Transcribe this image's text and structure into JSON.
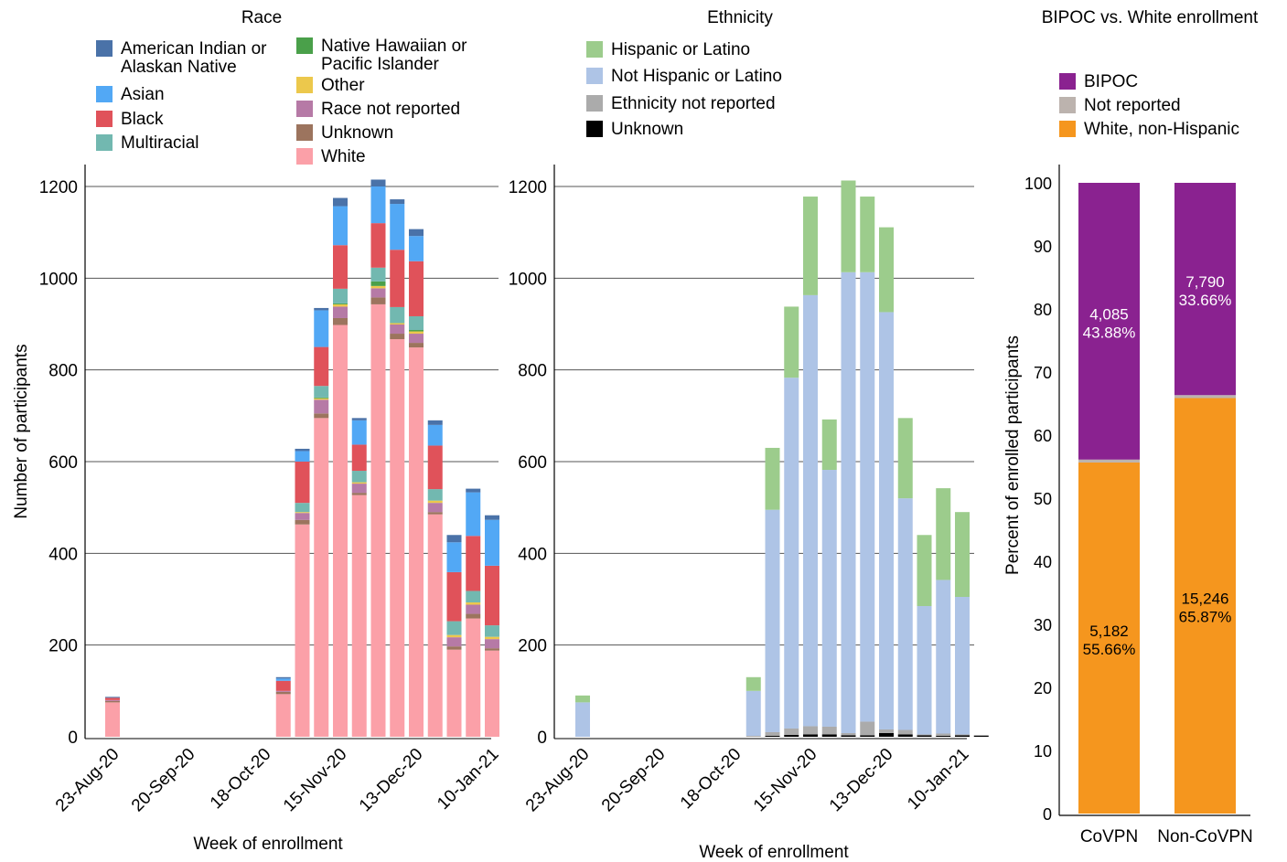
{
  "colors": {
    "American Indian or Alaskan Native": "#4a72a8",
    "Native Hawaiian or Pacific Islander": "#4aa04a",
    "Asian": "#52a8f5",
    "Other": "#ecc84c",
    "Black": "#e0525a",
    "Race not reported": "#b67aa6",
    "Multiracial": "#72b8b0",
    "Unknown": "#9c745e",
    "White": "#fba0a8",
    "Hispanic or Latino": "#9ccc8c",
    "Not Hispanic or Latino": "#aec4e6",
    "Ethnicity not reported": "#ababab",
    "Unknown (ethnicity)": "#000000",
    "BIPOC": "#8a2290",
    "Not reported": "#bcb3ae",
    "White, non-Hispanic": "#f5961e",
    "gridline": "#555555"
  },
  "chart_data": [
    {
      "id": "race",
      "type": "bar",
      "stacked": true,
      "title": "Race",
      "xlabel": "Week of enrollment",
      "ylabel": "Number of participants",
      "ylim": [
        0,
        1250
      ],
      "yticks": [
        0,
        200,
        400,
        600,
        800,
        1000,
        1200
      ],
      "grid": true,
      "legend": [
        [
          "American Indian or",
          "Alaskan Native"
        ],
        [
          "Asian"
        ],
        [
          "Black"
        ],
        [
          "Multiracial"
        ],
        [
          "Native Hawaiian or",
          "Pacific Islander"
        ],
        [
          "Other"
        ],
        [
          "Race not reported"
        ],
        [
          "Unknown"
        ],
        [
          "White"
        ]
      ],
      "xtick_labels": [
        "23-Aug-20",
        "20-Sep-20",
        "18-Oct-20",
        "15-Nov-20",
        "13-Dec-20",
        "10-Jan-21"
      ],
      "xtick_index": [
        0,
        4,
        8,
        12,
        16,
        20
      ],
      "categories": [
        "23-Aug-20",
        "30-Aug-20",
        "6-Sep-20",
        "13-Sep-20",
        "20-Sep-20",
        "27-Sep-20",
        "4-Oct-20",
        "11-Oct-20",
        "18-Oct-20",
        "25-Oct-20",
        "1-Nov-20",
        "8-Nov-20",
        "15-Nov-20",
        "22-Nov-20",
        "29-Nov-20",
        "6-Dec-20",
        "13-Dec-20",
        "20-Dec-20",
        "27-Dec-20",
        "3-Jan-21",
        "10-Jan-21",
        "17-Jan-21"
      ],
      "series": [
        {
          "name": "White",
          "values": [
            75,
            0,
            0,
            0,
            0,
            0,
            0,
            0,
            0,
            93,
            463,
            695,
            898,
            527,
            943,
            867,
            849,
            485,
            190,
            258,
            188,
            0
          ]
        },
        {
          "name": "Unknown",
          "values": [
            3,
            0,
            0,
            0,
            0,
            0,
            0,
            0,
            0,
            5,
            10,
            10,
            15,
            5,
            15,
            12,
            10,
            5,
            7,
            10,
            5,
            0
          ]
        },
        {
          "name": "Race not reported",
          "values": [
            2,
            0,
            0,
            0,
            0,
            0,
            0,
            0,
            0,
            2,
            15,
            30,
            25,
            20,
            20,
            20,
            20,
            20,
            20,
            20,
            20,
            0
          ]
        },
        {
          "name": "Other",
          "values": [
            0,
            0,
            0,
            0,
            0,
            0,
            0,
            0,
            0,
            0,
            2,
            3,
            5,
            3,
            5,
            3,
            5,
            5,
            5,
            5,
            5,
            0
          ]
        },
        {
          "name": "Native Hawaiian or Pacific Islander",
          "values": [
            0,
            0,
            0,
            0,
            0,
            0,
            0,
            0,
            0,
            0,
            0,
            2,
            2,
            0,
            10,
            0,
            3,
            0,
            0,
            0,
            0,
            0
          ]
        },
        {
          "name": "Multiracial",
          "values": [
            0,
            0,
            0,
            0,
            0,
            0,
            0,
            0,
            0,
            0,
            20,
            25,
            32,
            25,
            30,
            35,
            30,
            25,
            30,
            25,
            25,
            0
          ]
        },
        {
          "name": "Black",
          "values": [
            5,
            0,
            0,
            0,
            0,
            0,
            0,
            0,
            0,
            22,
            90,
            85,
            95,
            57,
            97,
            125,
            120,
            95,
            107,
            120,
            130,
            0
          ]
        },
        {
          "name": "Asian",
          "values": [
            0,
            0,
            0,
            0,
            0,
            0,
            0,
            0,
            0,
            5,
            23,
            80,
            85,
            53,
            80,
            100,
            55,
            45,
            65,
            95,
            100,
            0
          ]
        },
        {
          "name": "American Indian or Alaskan Native",
          "values": [
            2,
            0,
            0,
            0,
            0,
            0,
            0,
            0,
            0,
            3,
            5,
            5,
            18,
            5,
            15,
            10,
            15,
            10,
            16,
            8,
            10,
            0
          ]
        }
      ]
    },
    {
      "id": "ethnicity",
      "type": "bar",
      "stacked": true,
      "title": "Ethnicity",
      "xlabel": "Week of enrollment",
      "ylabel": "",
      "ylim": [
        0,
        1250
      ],
      "yticks": [
        0,
        200,
        400,
        600,
        800,
        1000,
        1200
      ],
      "grid": true,
      "legend": [
        [
          "Hispanic or Latino"
        ],
        [
          "Not Hispanic or Latino"
        ],
        [
          "Ethnicity not reported"
        ],
        [
          "Unknown"
        ]
      ],
      "xtick_labels": [
        "23-Aug-20",
        "20-Sep-20",
        "18-Oct-20",
        "15-Nov-20",
        "13-Dec-20",
        "10-Jan-21"
      ],
      "xtick_index": [
        0,
        4,
        8,
        12,
        16,
        20
      ],
      "categories": [
        "23-Aug-20",
        "30-Aug-20",
        "6-Sep-20",
        "13-Sep-20",
        "20-Sep-20",
        "27-Sep-20",
        "4-Oct-20",
        "11-Oct-20",
        "18-Oct-20",
        "25-Oct-20",
        "1-Nov-20",
        "8-Nov-20",
        "15-Nov-20",
        "22-Nov-20",
        "29-Nov-20",
        "6-Dec-20",
        "13-Dec-20",
        "20-Dec-20",
        "27-Dec-20",
        "3-Jan-21",
        "10-Jan-21",
        "17-Jan-21"
      ],
      "series": [
        {
          "name": "Unknown",
          "values": [
            0,
            0,
            0,
            0,
            0,
            0,
            0,
            0,
            0,
            0,
            2,
            4,
            5,
            5,
            3,
            3,
            8,
            5,
            3,
            2,
            3,
            2
          ]
        },
        {
          "name": "Ethnicity not reported",
          "values": [
            0,
            0,
            0,
            0,
            0,
            0,
            0,
            0,
            0,
            2,
            8,
            14,
            18,
            17,
            5,
            30,
            8,
            10,
            2,
            5,
            2,
            2
          ]
        },
        {
          "name": "Not Hispanic or Latino",
          "values": [
            75,
            0,
            0,
            0,
            0,
            0,
            0,
            0,
            0,
            98,
            485,
            765,
            940,
            560,
            1005,
            980,
            910,
            505,
            280,
            335,
            300,
            0
          ]
        },
        {
          "name": "Hispanic or Latino",
          "values": [
            15,
            0,
            0,
            0,
            0,
            0,
            0,
            0,
            0,
            30,
            135,
            155,
            215,
            110,
            200,
            165,
            185,
            175,
            155,
            200,
            185,
            0
          ]
        }
      ]
    },
    {
      "id": "bipoc",
      "type": "bar",
      "stacked": true,
      "title": "BIPOC vs. White enrollment",
      "xlabel": "",
      "ylabel": "Percent of enrolled participants",
      "ylim": [
        0,
        100
      ],
      "yticks": [
        0,
        10,
        20,
        30,
        40,
        50,
        60,
        70,
        80,
        90,
        100
      ],
      "grid": false,
      "legend": [
        [
          "BIPOC"
        ],
        [
          "Not reported"
        ],
        [
          "White, non-Hispanic"
        ]
      ],
      "categories": [
        "CoVPN",
        "Non-CoVPN"
      ],
      "series": [
        {
          "name": "White, non-Hispanic",
          "values": [
            55.66,
            65.87
          ],
          "counts": [
            "5,182",
            "15,246"
          ],
          "labels": [
            "55.66%",
            "65.87%"
          ]
        },
        {
          "name": "Not reported",
          "values": [
            0.46,
            0.47
          ],
          "counts": [
            "",
            ""
          ],
          "labels": [
            "",
            ""
          ]
        },
        {
          "name": "BIPOC",
          "values": [
            43.88,
            33.66
          ],
          "counts": [
            "4,085",
            "7,790"
          ],
          "labels": [
            "43.88%",
            "33.66%"
          ]
        }
      ]
    }
  ]
}
